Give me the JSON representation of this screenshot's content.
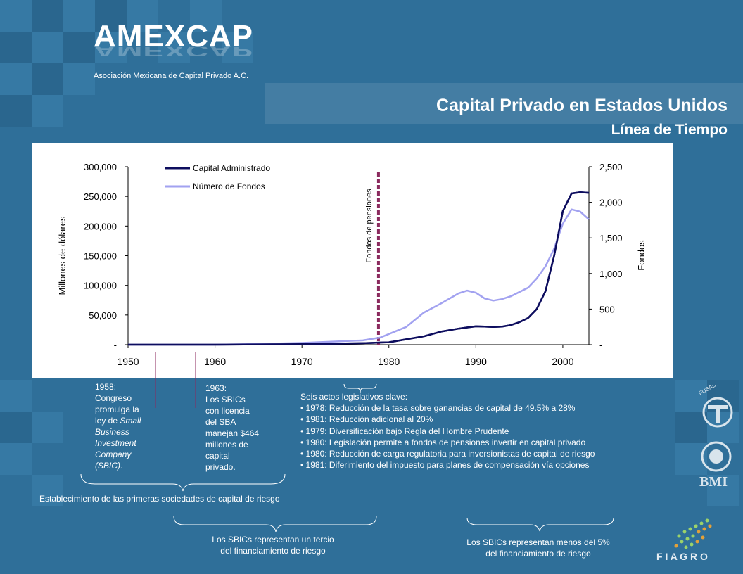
{
  "header": {
    "logo_text": "AMEXCAP",
    "logo_subtitle": "Asociación Mexicana de Capital Privado A.C.",
    "title": "Capital Privado en Estados Unidos",
    "subtitle": "Línea de Tiempo"
  },
  "chart_data": {
    "type": "line",
    "x": [
      1950,
      1955,
      1960,
      1965,
      1970,
      1975,
      1977,
      1978,
      1979,
      1980,
      1982,
      1984,
      1986,
      1988,
      1989,
      1990,
      1991,
      1992,
      1993,
      1994,
      1995,
      1996,
      1997,
      1998,
      1999,
      2000,
      2001,
      2002,
      2003
    ],
    "series": [
      {
        "name": "Capital Administrado",
        "axis": "left",
        "color": "#0d0d5e",
        "values": [
          0,
          0,
          0,
          500,
          1000,
          2000,
          2500,
          3000,
          3500,
          4000,
          9000,
          14000,
          22000,
          27000,
          29000,
          31000,
          30500,
          30000,
          30500,
          33000,
          38000,
          45000,
          60000,
          90000,
          150000,
          225000,
          255000,
          257000,
          256000
        ]
      },
      {
        "name": "Número de Fondos",
        "axis": "right",
        "color": "#a2a2f0",
        "values": [
          0,
          0,
          0,
          10,
          25,
          50,
          60,
          80,
          100,
          150,
          250,
          450,
          580,
          720,
          760,
          730,
          650,
          620,
          640,
          680,
          740,
          800,
          930,
          1100,
          1350,
          1700,
          1900,
          1870,
          1760
        ]
      }
    ],
    "yleft": {
      "label": "Millones de dólares",
      "ylim": [
        0,
        300000
      ],
      "ticks": [
        "-",
        "50,000",
        "100,000",
        "150,000",
        "200,000",
        "250,000",
        "300,000"
      ]
    },
    "yright": {
      "label": "Fondos",
      "ylim": [
        0,
        2500
      ],
      "ticks": [
        "-",
        "500",
        "1,000",
        "1,500",
        "2,000",
        "2,500"
      ]
    },
    "xlim": [
      1950,
      2003
    ],
    "xticks": [
      "1950",
      "1960",
      "1970",
      "1980",
      "1990",
      "2000"
    ],
    "annotations": [
      {
        "text": "Fondos de pensiones",
        "x": 1978.8,
        "style": "dashed-vertical",
        "color": "#8b2a5e"
      }
    ],
    "legend": "top-left"
  },
  "annotations": {
    "a1958": {
      "year": "1958:",
      "l1": "Congreso",
      "l2": "promulga la",
      "l3": "ley de",
      "l3i": "Small",
      "l4": "Business",
      "l5": "Investment",
      "l6": "Company",
      "l7": "(SBIC)",
      "l7e": "."
    },
    "a1963": {
      "year": "1963:",
      "l1": "Los SBICs",
      "l2": "con licencia",
      "l3": "del SBA",
      "l4": "manejan $464",
      "l5": "millones de",
      "l6": "capital",
      "l7": "privado."
    },
    "acts": {
      "heading": "Seis actos legislativos clave:",
      "items": [
        "1978: Reducción de la tasa sobre ganancias de capital de 49.5% a 28%",
        "1981: Reducción adicional al 20%",
        "1979: Diversificación bajo Regla del Hombre Prudente",
        "1980: Legislación permite a fondos de pensiones invertir en capital privado",
        "1980: Reducción de carga regulatoria para inversionistas de capital de riesgo",
        "1981: Diferimiento del impuesto para planes de compensación vía opciones"
      ]
    }
  },
  "braces": {
    "b1": "Establecimiento de las primeras sociedades de capital de riesgo",
    "b2_l1": "Los SBICs representan un tercio",
    "b2_l2": "del financiamiento de riesgo",
    "b3_l1": "Los SBICs representan menos del 5%",
    "b3_l2": "del financiamiento de riesgo"
  },
  "side_logos": {
    "bmi": "BMI",
    "fiagro": "F I A G R O",
    "fusades": "FUSADES"
  },
  "colors": {
    "background": "#2f6f99",
    "capital": "#0d0d5e",
    "fondos": "#a2a2f0",
    "pension_line": "#8b2a5e"
  }
}
